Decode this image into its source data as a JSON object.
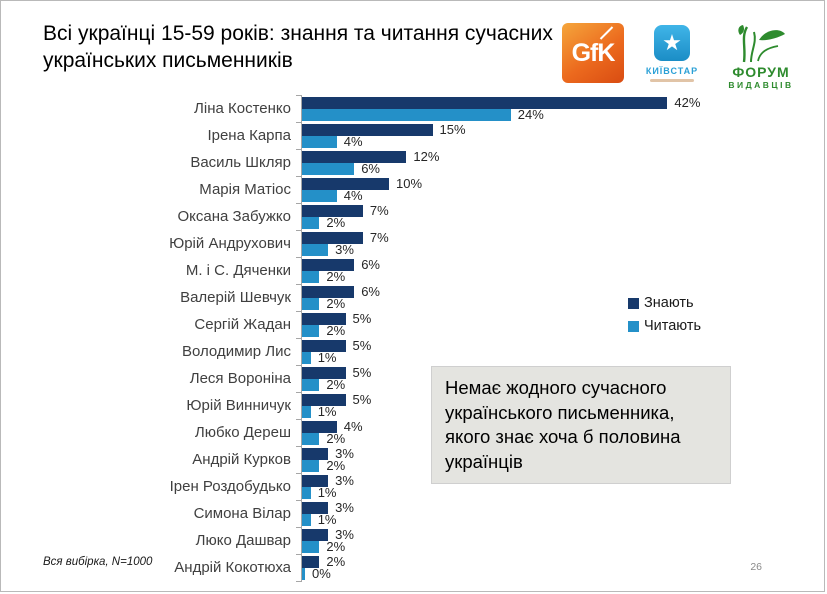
{
  "title": "Всі українці 15-59 років: знання та читання сучасних українських письменників",
  "logos": {
    "gfk_text": "GfK",
    "kyivstar_star": "★",
    "kyivstar_text": "КИЇВСТАР",
    "forum_line1": "ФОРУМ",
    "forum_line2": "ВИДАВЦІВ"
  },
  "callout_text": "Немає жодного сучасного українського письменника, якого знає хоча б половина українців",
  "footnote": "Вся вибірка, N=1000",
  "page_number": "26",
  "colors": {
    "know": "#17396B",
    "read": "#2490C8",
    "axis": "#A6A6A6",
    "callout_bg": "#E4E4E0"
  },
  "chart_data": {
    "type": "bar",
    "orientation": "horizontal",
    "title": "Всі українці 15-59 років: знання та читання сучасних українських письменників",
    "value_suffix": "%",
    "xlim": [
      0,
      45
    ],
    "grid": false,
    "legend_position": "right",
    "categories": [
      "Ліна Костенко",
      "Ірена Карпа",
      "Василь Шкляр",
      "Марія Матіос",
      "Оксана Забужко",
      "Юрій Андрухович",
      "М. і С. Дяченки",
      "Валерій Шевчук",
      "Сергій Жадан",
      "Володимир Лис",
      "Леся Вороніна",
      "Юрій Винничук",
      "Любко Дереш",
      "Андрій Курков",
      "Ірен Роздобудько",
      "Симона Вілар",
      "Люко Дашвар",
      "Андрій Кокотюха"
    ],
    "series": [
      {
        "name": "Знають",
        "color": "#17396B",
        "values": [
          42,
          15,
          12,
          10,
          7,
          7,
          6,
          6,
          5,
          5,
          5,
          5,
          4,
          3,
          3,
          3,
          3,
          2
        ]
      },
      {
        "name": "Читають",
        "color": "#2490C8",
        "values": [
          24,
          4,
          6,
          4,
          2,
          3,
          2,
          2,
          2,
          1,
          2,
          1,
          2,
          2,
          1,
          1,
          2,
          0
        ]
      }
    ]
  }
}
